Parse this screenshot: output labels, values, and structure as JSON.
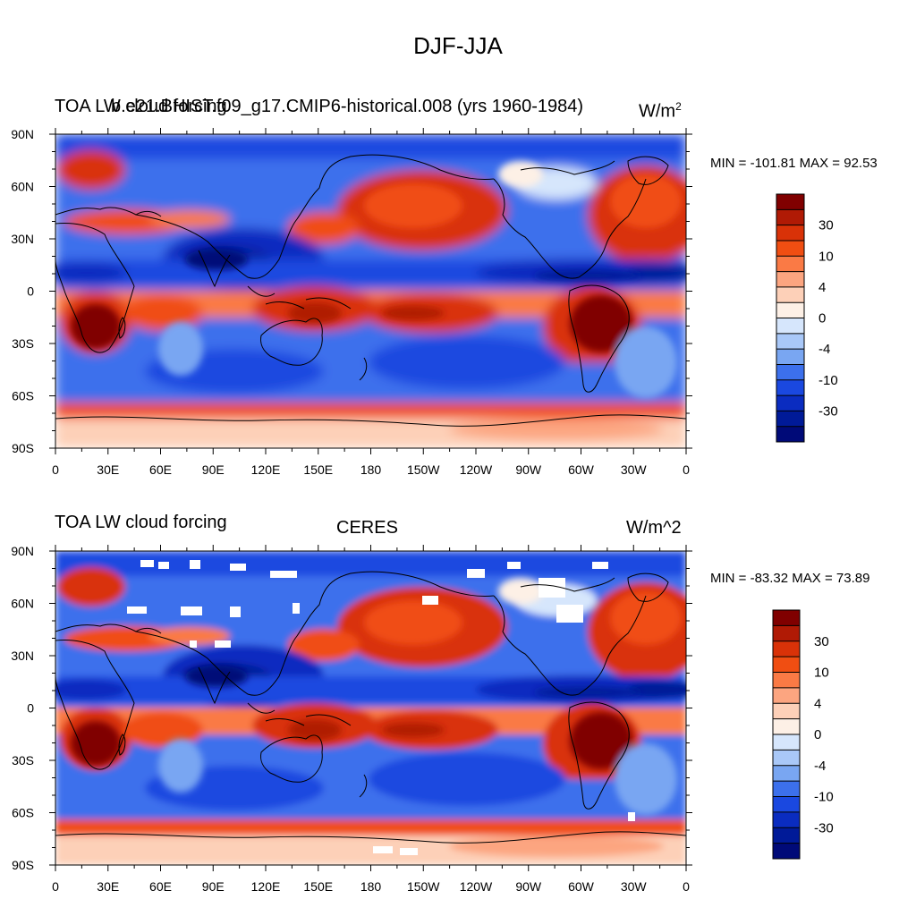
{
  "figure": {
    "title": "DJF-JJA"
  },
  "panels": [
    {
      "id": "model",
      "left_title": "TOA LW cloud forcing",
      "center_title": "b.e21.BHIST.f09_g17.CMIP6-historical.008 (yrs 1960-1984)",
      "units_text": "W/m",
      "units_superscript": "2",
      "stats": "MIN = -101.81 MAX =  92.53",
      "missing_data_patches": false
    },
    {
      "id": "obs",
      "left_title": "TOA LW cloud forcing",
      "center_title": "CERES",
      "units_text": "W/m^2",
      "units_superscript": "",
      "stats": "MIN = -83.32 MAX =  73.89",
      "missing_data_patches": true
    }
  ],
  "axes": {
    "lon_labels": [
      "0",
      "30E",
      "60E",
      "90E",
      "120E",
      "150E",
      "180",
      "150W",
      "120W",
      "90W",
      "60W",
      "30W",
      "0"
    ],
    "lat_labels": [
      "90N",
      "60N",
      "30N",
      "0",
      "30S",
      "60S",
      "90S"
    ]
  },
  "colorbar": {
    "labels": [
      "30",
      "10",
      "4",
      "0",
      "-4",
      "-10",
      "-30"
    ],
    "colors": [
      "#800000",
      "#b01a05",
      "#d93208",
      "#f04e12",
      "#fa7a45",
      "#fca580",
      "#fdd0b8",
      "#fdf0e6",
      "#d6e6fc",
      "#a9c8f8",
      "#79a6f2",
      "#3c70ec",
      "#1a48e0",
      "#0a2cc0",
      "#001a98",
      "#000a78"
    ]
  },
  "chart_data": [
    {
      "type": "heatmap",
      "title": "b.e21.BHIST.f09_g17.CMIP6-historical.008 (yrs 1960-1984)",
      "subtitle": "TOA LW cloud forcing",
      "units": "W/m2",
      "season": "DJF-JJA",
      "min": -101.81,
      "max": 92.53,
      "contour_levels": [
        -30,
        -10,
        -4,
        0,
        4,
        10,
        30
      ]
    },
    {
      "type": "heatmap",
      "title": "CERES",
      "subtitle": "TOA LW cloud forcing",
      "units": "W/m^2",
      "season": "DJF-JJA",
      "min": -83.32,
      "max": 73.89,
      "contour_levels": [
        -30,
        -10,
        -4,
        0,
        4,
        10,
        30
      ]
    }
  ]
}
